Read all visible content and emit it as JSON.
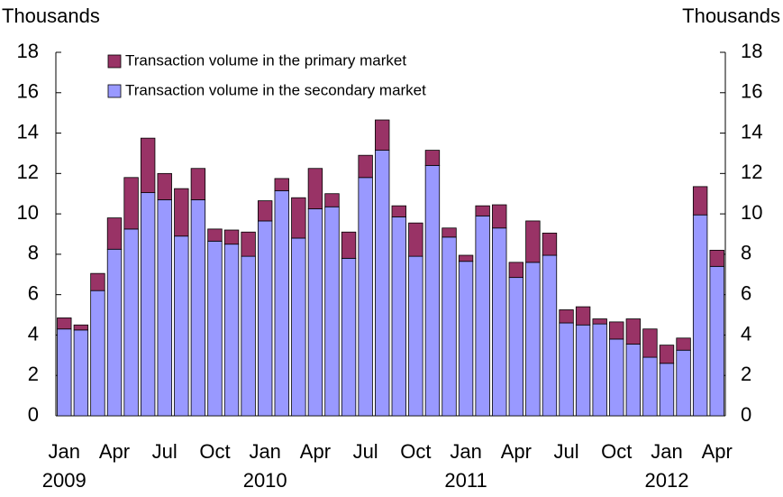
{
  "chart_data": {
    "type": "stacked_bar",
    "y_label_left": "Thousands",
    "y_label_right": "Thousands",
    "categories": [
      "Jan",
      null,
      null,
      "Apr",
      null,
      null,
      "Jul",
      null,
      null,
      "Oct",
      null,
      null,
      "Jan",
      null,
      null,
      "Apr",
      null,
      null,
      "Jul",
      null,
      null,
      "Oct",
      null,
      null,
      "Jan",
      null,
      null,
      "Apr",
      null,
      null,
      "Jul",
      null,
      null,
      "Oct",
      null,
      null,
      "Jan",
      null,
      null,
      "Apr"
    ],
    "years": [
      "2009",
      "2010",
      "2011",
      "2012"
    ],
    "series": [
      {
        "name": "Transaction volume in the secondary market",
        "color": "#9999ff",
        "values": [
          4.3,
          4.25,
          6.2,
          8.25,
          9.25,
          11.05,
          10.7,
          8.9,
          10.7,
          8.65,
          8.5,
          7.9,
          9.65,
          11.15,
          8.8,
          10.25,
          10.35,
          7.8,
          11.8,
          13.15,
          9.85,
          7.9,
          12.4,
          8.85,
          7.65,
          9.9,
          9.3,
          6.85,
          7.6,
          7.95,
          4.6,
          4.5,
          4.55,
          3.8,
          3.55,
          2.9,
          2.6,
          3.25,
          9.95,
          7.4
        ]
      },
      {
        "name": "Transaction volume in the primary market",
        "color": "#993366",
        "values": [
          0.55,
          0.25,
          0.85,
          1.55,
          2.55,
          2.7,
          1.3,
          2.35,
          1.55,
          0.6,
          0.7,
          1.2,
          1.0,
          0.6,
          2.0,
          2.0,
          0.65,
          1.3,
          1.1,
          1.5,
          0.55,
          1.65,
          0.75,
          0.45,
          0.3,
          0.5,
          1.15,
          0.75,
          2.05,
          1.1,
          0.65,
          0.9,
          0.25,
          0.85,
          1.25,
          1.4,
          0.9,
          0.6,
          1.4,
          0.8
        ]
      }
    ],
    "ylim": [
      0,
      18
    ],
    "yticks": [
      0,
      2,
      4,
      6,
      8,
      10,
      12,
      14,
      16,
      18
    ],
    "y2lim": [
      0,
      18
    ],
    "y2ticks": [
      0,
      2,
      4,
      6,
      8,
      10,
      12,
      14,
      16,
      18
    ]
  }
}
